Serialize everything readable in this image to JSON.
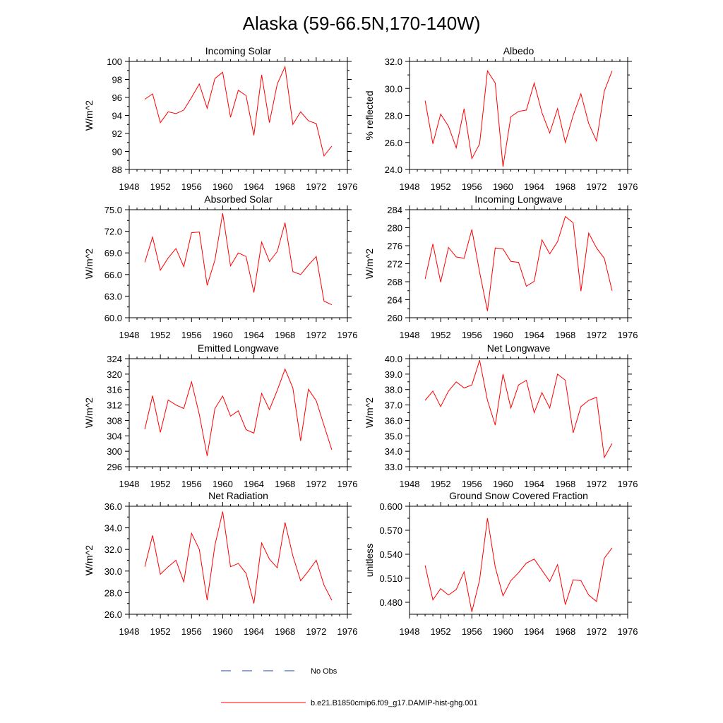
{
  "title": "Alaska (59-66.5N,170-140W)",
  "colors": {
    "model": "#ff0000",
    "obs": "#1f3fb4",
    "axis": "#000000"
  },
  "legend": {
    "obs_label": "No Obs",
    "model_label": "b.e21.B1850cmip6.f09_g17.DAMIP-hist-ghg.001"
  },
  "chart_data": [
    {
      "type": "line",
      "title": "Incoming Solar",
      "ylabel": "W/m^2",
      "xlabel": "",
      "xlim": [
        1948,
        1976
      ],
      "xticks": [
        1948,
        1952,
        1956,
        1960,
        1964,
        1968,
        1972,
        1976
      ],
      "ylim": [
        88,
        100
      ],
      "yticks": [
        "88",
        "90",
        "92",
        "94",
        "96",
        "98",
        "100"
      ],
      "x": [
        1950,
        1951,
        1952,
        1953,
        1954,
        1955,
        1956,
        1957,
        1958,
        1959,
        1960,
        1961,
        1962,
        1963,
        1964,
        1965,
        1966,
        1967,
        1968,
        1969,
        1970,
        1971,
        1972,
        1973,
        1974
      ],
      "series": [
        {
          "name": "b.e21.B1850cmip6.f09_g17.DAMIP-hist-ghg.001",
          "values": [
            95.8,
            96.4,
            93.2,
            94.4,
            94.2,
            94.6,
            96.0,
            97.5,
            94.8,
            98.1,
            98.8,
            93.8,
            96.8,
            96.2,
            91.8,
            98.5,
            93.2,
            97.5,
            99.4,
            93.0,
            94.4,
            93.4,
            93.1,
            89.5,
            90.6
          ]
        }
      ]
    },
    {
      "type": "line",
      "title": "Albedo",
      "ylabel": "% reflected",
      "xlabel": "",
      "xlim": [
        1948,
        1976
      ],
      "xticks": [
        1948,
        1952,
        1956,
        1960,
        1964,
        1968,
        1972,
        1976
      ],
      "ylim": [
        24,
        32
      ],
      "yticks": [
        "24.0",
        "26.0",
        "28.0",
        "30.0",
        "32.0"
      ],
      "x": [
        1950,
        1951,
        1952,
        1953,
        1954,
        1955,
        1956,
        1957,
        1958,
        1959,
        1960,
        1961,
        1962,
        1963,
        1964,
        1965,
        1966,
        1967,
        1968,
        1969,
        1970,
        1971,
        1972,
        1973,
        1974
      ],
      "series": [
        {
          "name": "b.e21.B1850cmip6.f09_g17.DAMIP-hist-ghg.001",
          "values": [
            29.1,
            25.9,
            28.1,
            27.2,
            25.6,
            28.5,
            24.8,
            25.9,
            31.3,
            30.4,
            24.2,
            27.9,
            28.3,
            28.4,
            30.4,
            28.2,
            26.7,
            28.5,
            26.0,
            28.0,
            29.6,
            27.4,
            26.1,
            29.8,
            31.3
          ]
        }
      ]
    },
    {
      "type": "line",
      "title": "Absorbed Solar",
      "ylabel": "W/m^2",
      "xlabel": "",
      "xlim": [
        1948,
        1976
      ],
      "xticks": [
        1948,
        1952,
        1956,
        1960,
        1964,
        1968,
        1972,
        1976
      ],
      "ylim": [
        60,
        75
      ],
      "yticks": [
        "60.0",
        "63.0",
        "66.0",
        "69.0",
        "72.0",
        "75.0"
      ],
      "x": [
        1950,
        1951,
        1952,
        1953,
        1954,
        1955,
        1956,
        1957,
        1958,
        1959,
        1960,
        1961,
        1962,
        1963,
        1964,
        1965,
        1966,
        1967,
        1968,
        1969,
        1970,
        1971,
        1972,
        1973,
        1974
      ],
      "series": [
        {
          "name": "b.e21.B1850cmip6.f09_g17.DAMIP-hist-ghg.001",
          "values": [
            67.7,
            71.2,
            66.6,
            68.3,
            69.6,
            67.1,
            71.8,
            71.9,
            64.5,
            68.0,
            74.5,
            67.2,
            69.0,
            68.5,
            63.5,
            70.5,
            67.8,
            69.2,
            73.2,
            66.4,
            66.0,
            67.3,
            68.5,
            62.3,
            61.8
          ]
        }
      ]
    },
    {
      "type": "line",
      "title": "Incoming Longwave",
      "ylabel": "W/m^2",
      "xlabel": "",
      "xlim": [
        1948,
        1976
      ],
      "xticks": [
        1948,
        1952,
        1956,
        1960,
        1964,
        1968,
        1972,
        1976
      ],
      "ylim": [
        260,
        284
      ],
      "yticks": [
        "260",
        "264",
        "268",
        "272",
        "276",
        "280",
        "284"
      ],
      "x": [
        1950,
        1951,
        1952,
        1953,
        1954,
        1955,
        1956,
        1957,
        1958,
        1959,
        1960,
        1961,
        1962,
        1963,
        1964,
        1965,
        1966,
        1967,
        1968,
        1969,
        1970,
        1971,
        1972,
        1973,
        1974
      ],
      "series": [
        {
          "name": "b.e21.B1850cmip6.f09_g17.DAMIP-hist-ghg.001",
          "values": [
            268.6,
            276.4,
            267.9,
            275.6,
            273.5,
            273.2,
            279.6,
            270.1,
            261.5,
            275.5,
            275.3,
            272.5,
            272.3,
            267.0,
            268.1,
            277.3,
            274.2,
            276.9,
            282.5,
            281.1,
            265.9,
            278.8,
            275.5,
            273.2,
            266.0
          ]
        }
      ]
    },
    {
      "type": "line",
      "title": "Emitted Longwave",
      "ylabel": "W/m^2",
      "xlabel": "",
      "xlim": [
        1948,
        1976
      ],
      "xticks": [
        1948,
        1952,
        1956,
        1960,
        1964,
        1968,
        1972,
        1976
      ],
      "ylim": [
        296,
        324
      ],
      "yticks": [
        "296",
        "300",
        "304",
        "308",
        "312",
        "316",
        "320",
        "324"
      ],
      "x": [
        1950,
        1951,
        1952,
        1953,
        1954,
        1955,
        1956,
        1957,
        1958,
        1959,
        1960,
        1961,
        1962,
        1963,
        1964,
        1965,
        1966,
        1967,
        1968,
        1969,
        1970,
        1971,
        1972,
        1973,
        1974
      ],
      "series": [
        {
          "name": "b.e21.B1850cmip6.f09_g17.DAMIP-hist-ghg.001",
          "values": [
            305.7,
            314.4,
            304.9,
            313.3,
            312.0,
            311.1,
            318.0,
            309.5,
            298.8,
            311.1,
            314.3,
            309.1,
            310.5,
            305.6,
            304.7,
            315.0,
            310.8,
            315.8,
            321.3,
            316.4,
            302.7,
            316.1,
            313.1,
            306.7,
            300.4
          ]
        }
      ]
    },
    {
      "type": "line",
      "title": "Net Longwave",
      "ylabel": "W/m^2",
      "xlabel": "",
      "xlim": [
        1948,
        1976
      ],
      "xticks": [
        1948,
        1952,
        1956,
        1960,
        1964,
        1968,
        1972,
        1976
      ],
      "ylim": [
        33,
        40
      ],
      "yticks": [
        "33.0",
        "34.0",
        "35.0",
        "36.0",
        "37.0",
        "38.0",
        "39.0",
        "40.0"
      ],
      "x": [
        1950,
        1951,
        1952,
        1953,
        1954,
        1955,
        1956,
        1957,
        1958,
        1959,
        1960,
        1961,
        1962,
        1963,
        1964,
        1965,
        1966,
        1967,
        1968,
        1969,
        1970,
        1971,
        1972,
        1973,
        1974
      ],
      "series": [
        {
          "name": "b.e21.B1850cmip6.f09_g17.DAMIP-hist-ghg.001",
          "values": [
            37.3,
            37.9,
            36.9,
            37.9,
            38.5,
            38.1,
            38.3,
            39.9,
            37.3,
            35.7,
            39.0,
            36.8,
            38.3,
            38.6,
            36.5,
            37.8,
            36.8,
            39.0,
            38.6,
            35.2,
            36.9,
            37.3,
            37.5,
            33.6,
            34.5
          ]
        }
      ]
    },
    {
      "type": "line",
      "title": "Net Radiation",
      "ylabel": "W/m^2",
      "xlabel": "",
      "xlim": [
        1948,
        1976
      ],
      "xticks": [
        1948,
        1952,
        1956,
        1960,
        1964,
        1968,
        1972,
        1976
      ],
      "ylim": [
        26,
        36
      ],
      "yticks": [
        "26.0",
        "28.0",
        "30.0",
        "32.0",
        "34.0",
        "36.0"
      ],
      "x": [
        1950,
        1951,
        1952,
        1953,
        1954,
        1955,
        1956,
        1957,
        1958,
        1959,
        1960,
        1961,
        1962,
        1963,
        1964,
        1965,
        1966,
        1967,
        1968,
        1969,
        1970,
        1971,
        1972,
        1973,
        1974
      ],
      "series": [
        {
          "name": "b.e21.B1850cmip6.f09_g17.DAMIP-hist-ghg.001",
          "values": [
            30.4,
            33.3,
            29.7,
            30.4,
            31.0,
            29.0,
            33.5,
            32.0,
            27.3,
            32.4,
            35.5,
            30.4,
            30.7,
            29.8,
            27.0,
            32.6,
            31.1,
            30.3,
            34.5,
            31.4,
            29.1,
            30.0,
            31.0,
            28.7,
            27.3
          ]
        }
      ]
    },
    {
      "type": "line",
      "title": "Ground Snow Covered Fraction",
      "ylabel": "unitless",
      "xlabel": "",
      "xlim": [
        1948,
        1976
      ],
      "xticks": [
        1948,
        1952,
        1956,
        1960,
        1964,
        1968,
        1972,
        1976
      ],
      "ylim": [
        0.465,
        0.6
      ],
      "yticks": [
        "0.480",
        "0.510",
        "0.540",
        "0.570",
        "0.600"
      ],
      "ytick_values": [
        0.48,
        0.51,
        0.54,
        0.57,
        0.6
      ],
      "x": [
        1950,
        1951,
        1952,
        1953,
        1954,
        1955,
        1956,
        1957,
        1958,
        1959,
        1960,
        1961,
        1962,
        1963,
        1964,
        1965,
        1966,
        1967,
        1968,
        1969,
        1970,
        1971,
        1972,
        1973,
        1974
      ],
      "series": [
        {
          "name": "b.e21.B1850cmip6.f09_g17.DAMIP-hist-ghg.001",
          "values": [
            0.526,
            0.483,
            0.497,
            0.489,
            0.496,
            0.518,
            0.468,
            0.508,
            0.585,
            0.524,
            0.488,
            0.507,
            0.517,
            0.529,
            0.534,
            0.52,
            0.506,
            0.527,
            0.477,
            0.508,
            0.507,
            0.489,
            0.481,
            0.535,
            0.548
          ]
        }
      ]
    }
  ]
}
